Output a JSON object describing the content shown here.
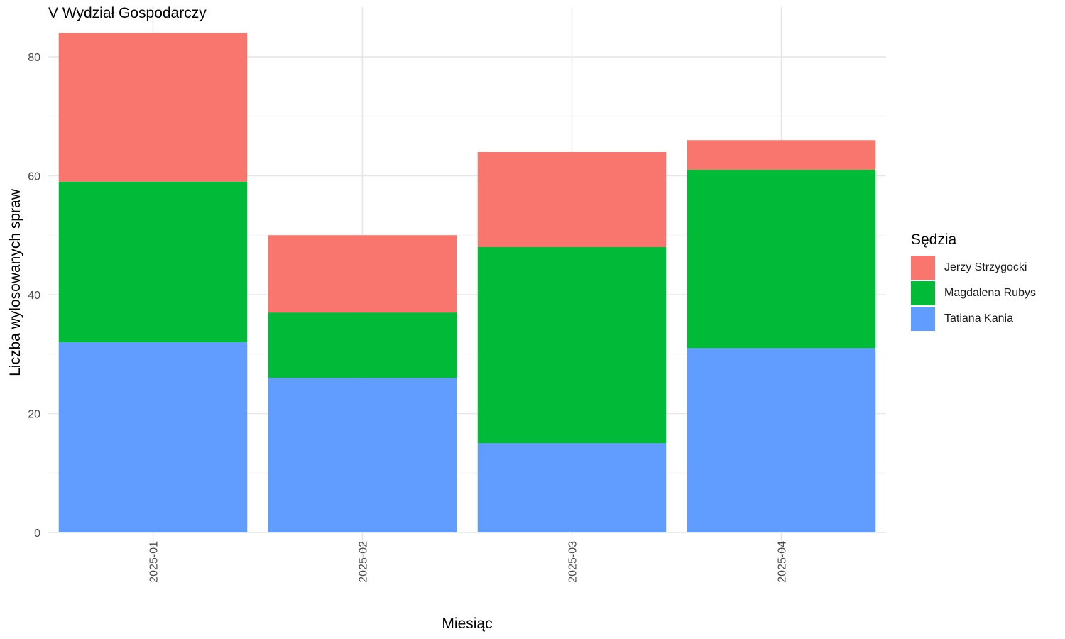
{
  "chart_data": {
    "type": "bar",
    "stacked": true,
    "title": "V Wydział Gospodarczy",
    "xlabel": "Miesiąc",
    "ylabel": "Liczba wylosowanych spraw",
    "categories": [
      "2025-01",
      "2025-02",
      "2025-03",
      "2025-04"
    ],
    "ylim": [
      0,
      85
    ],
    "yticks": [
      0,
      20,
      40,
      60,
      80
    ],
    "grid": true,
    "legend_title": "Sędzia",
    "legend_position": "right",
    "series": [
      {
        "name": "Tatiana Kania",
        "color": "#619CFF",
        "values": [
          32,
          26,
          15,
          31
        ]
      },
      {
        "name": "Magdalena Rubys",
        "color": "#00BA38",
        "values": [
          27,
          11,
          33,
          30
        ]
      },
      {
        "name": "Jerzy Strzygocki",
        "color": "#F8766D",
        "values": [
          25,
          13,
          16,
          5
        ]
      }
    ],
    "legend_order": [
      "Jerzy Strzygocki",
      "Magdalena Rubys",
      "Tatiana Kania"
    ]
  }
}
